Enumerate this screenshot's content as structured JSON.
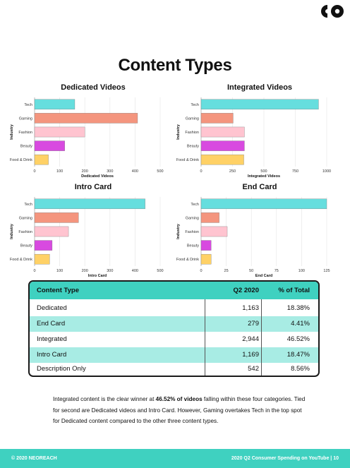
{
  "page": {
    "title": "Content Types",
    "logo_icon": "neoreach-logo-icon",
    "paragraph": {
      "before": "Integrated content is the clear winner at ",
      "bold": "46.52% of videos",
      "after": " falling within these four categories. Tied for second are Dedicated videos and Intro Card. However, Gaming overtakes Tech in the top spot for Dedicated content compared to the other three content types."
    },
    "footer": {
      "left": "© 2020 NEOREACH",
      "right": "2020 Q2 Consumer Spending on YouTube | 10"
    }
  },
  "colors": {
    "accent": "#3fd1c0",
    "accent_light": "#a8ece4",
    "Tech": "#66dede",
    "Gaming": "#f4957e",
    "Fashion": "#ffc4d0",
    "Beauty": "#d84ae0",
    "Food & Drink": "#ffd166"
  },
  "chart_data": [
    {
      "type": "bar",
      "orientation": "horizontal",
      "title": "Dedicated Videos",
      "xlabel": "Dedicated Videos",
      "ylabel": "Industry",
      "categories": [
        "Tech",
        "Gaming",
        "Fashion",
        "Beauty",
        "Food & Drink"
      ],
      "values": [
        160,
        410,
        200,
        120,
        55
      ],
      "xticks": [
        0,
        100,
        200,
        300,
        400,
        500
      ],
      "xlim": [
        0,
        500
      ]
    },
    {
      "type": "bar",
      "orientation": "horizontal",
      "title": "Integrated Videos",
      "xlabel": "Integrated Videos",
      "ylabel": "Industry",
      "categories": [
        "Tech",
        "Gaming",
        "Fashion",
        "Beauty",
        "Food & Drink"
      ],
      "values": [
        935,
        255,
        345,
        345,
        340
      ],
      "xticks": [
        0,
        250,
        500,
        750,
        1000
      ],
      "xlim": [
        0,
        1000
      ]
    },
    {
      "type": "bar",
      "orientation": "horizontal",
      "title": "Intro Card",
      "xlabel": "Intro Card",
      "ylabel": "Industry",
      "categories": [
        "Tech",
        "Gaming",
        "Fashion",
        "Beauty",
        "Food & Drink"
      ],
      "values": [
        440,
        175,
        135,
        70,
        60
      ],
      "xticks": [
        0,
        100,
        200,
        300,
        400,
        500
      ],
      "xlim": [
        0,
        500
      ]
    },
    {
      "type": "bar",
      "orientation": "horizontal",
      "title": "End Card",
      "xlabel": "End Card",
      "ylabel": "Industry",
      "categories": [
        "Tech",
        "Gaming",
        "Fashion",
        "Beauty",
        "Food & Drink"
      ],
      "values": [
        125,
        18,
        26,
        10,
        10
      ],
      "xticks": [
        0,
        25,
        50,
        75,
        100,
        125
      ],
      "xlim": [
        0,
        125
      ]
    }
  ],
  "table": {
    "headers": [
      "Content Type",
      "Q2 2020",
      "% of Total"
    ],
    "rows": [
      [
        "Dedicated",
        "1,163",
        "18.38%"
      ],
      [
        "End Card",
        "279",
        "4.41%"
      ],
      [
        "Integrated",
        "2,944",
        "46.52%"
      ],
      [
        "Intro Card",
        "1,169",
        "18.47%"
      ],
      [
        "Description Only",
        "542",
        "8.56%"
      ]
    ]
  }
}
